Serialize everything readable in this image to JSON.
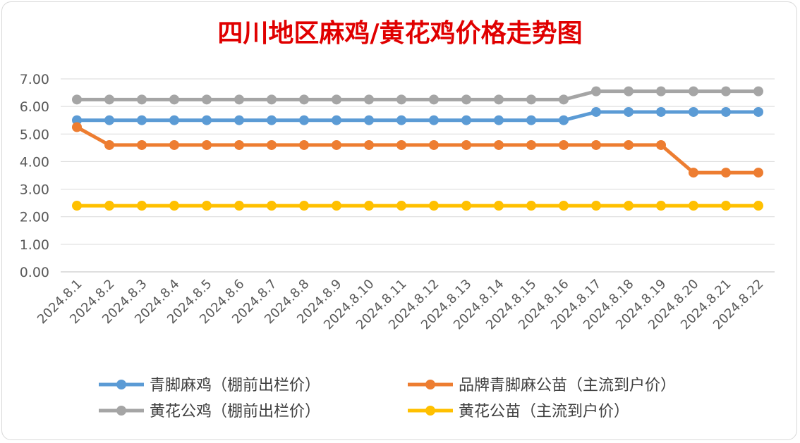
{
  "chart_data": {
    "type": "line",
    "title": "四川地区麻鸡/黄花鸡价格走势图",
    "title_color": "#e00000",
    "xlabel": "",
    "ylabel": "",
    "ylim": [
      0,
      7
    ],
    "yticks": [
      "0.00",
      "1.00",
      "2.00",
      "3.00",
      "4.00",
      "5.00",
      "6.00",
      "7.00"
    ],
    "grid": "horizontal",
    "legend_position": "bottom",
    "categories": [
      "2024.8.1",
      "2024.8.2",
      "2024.8.3",
      "2024.8.4",
      "2024.8.5",
      "2024.8.6",
      "2024.8.7",
      "2024.8.8",
      "2024.8.9",
      "2024.8.10",
      "2024.8.11",
      "2024.8.12",
      "2024.8.13",
      "2024.8.14",
      "2024.8.15",
      "2024.8.16",
      "2024.8.17",
      "2024.8.18",
      "2024.8.19",
      "2024.8.20",
      "2024.8.21",
      "2024.8.22"
    ],
    "series": [
      {
        "name": "青脚麻鸡（棚前出栏价）",
        "color": "#5b9bd5",
        "values": [
          5.5,
          5.5,
          5.5,
          5.5,
          5.5,
          5.5,
          5.5,
          5.5,
          5.5,
          5.5,
          5.5,
          5.5,
          5.5,
          5.5,
          5.5,
          5.5,
          5.8,
          5.8,
          5.8,
          5.8,
          5.8,
          5.8
        ]
      },
      {
        "name": "品牌青脚麻公苗（主流到户价）",
        "color": "#ed7d31",
        "values": [
          5.25,
          4.6,
          4.6,
          4.6,
          4.6,
          4.6,
          4.6,
          4.6,
          4.6,
          4.6,
          4.6,
          4.6,
          4.6,
          4.6,
          4.6,
          4.6,
          4.6,
          4.6,
          4.6,
          3.6,
          3.6,
          3.6
        ]
      },
      {
        "name": "黄花公鸡（棚前出栏价）",
        "color": "#a5a5a5",
        "values": [
          6.25,
          6.25,
          6.25,
          6.25,
          6.25,
          6.25,
          6.25,
          6.25,
          6.25,
          6.25,
          6.25,
          6.25,
          6.25,
          6.25,
          6.25,
          6.25,
          6.55,
          6.55,
          6.55,
          6.55,
          6.55,
          6.55
        ]
      },
      {
        "name": "黄花公苗（主流到户价）",
        "color": "#ffc000",
        "values": [
          2.4,
          2.4,
          2.4,
          2.4,
          2.4,
          2.4,
          2.4,
          2.4,
          2.4,
          2.4,
          2.4,
          2.4,
          2.4,
          2.4,
          2.4,
          2.4,
          2.4,
          2.4,
          2.4,
          2.4,
          2.4,
          2.4
        ]
      }
    ]
  }
}
